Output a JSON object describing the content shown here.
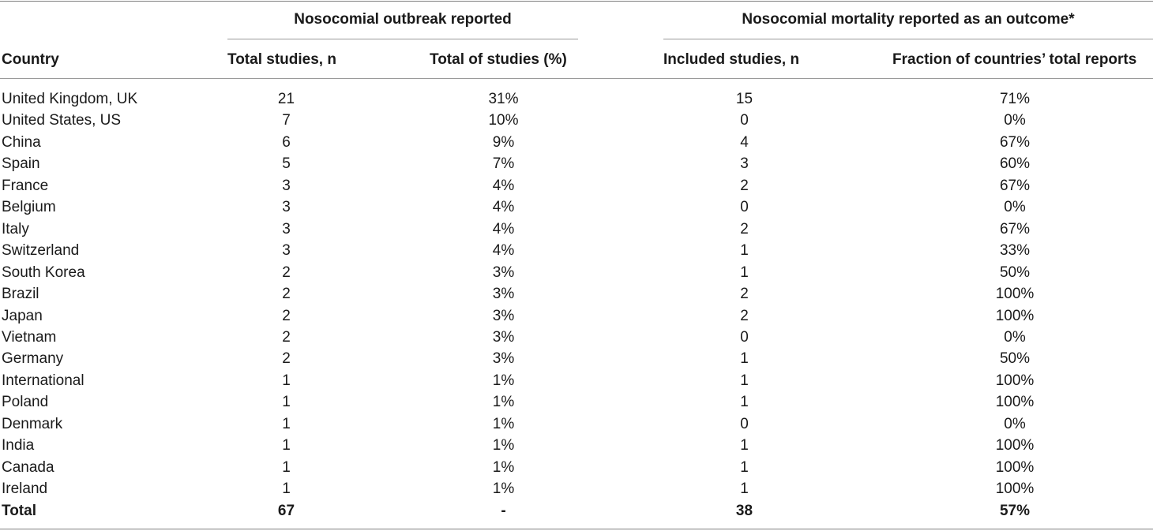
{
  "table": {
    "group_headers": {
      "outbreak": "Nosocomial outbreak reported",
      "mortality": "Nosocomial mortality reported as an outcome*"
    },
    "columns": {
      "country": "Country",
      "total_studies": "Total studies, n",
      "total_pct": "Total of studies (%)",
      "included_studies": "Included studies, n",
      "fraction": "Fraction of countries’ total reports"
    },
    "rows": [
      {
        "country": "United Kingdom, UK",
        "total": "21",
        "pct": "31%",
        "included": "15",
        "fraction": "71%"
      },
      {
        "country": "United States, US",
        "total": "7",
        "pct": "10%",
        "included": "0",
        "fraction": "0%"
      },
      {
        "country": "China",
        "total": "6",
        "pct": "9%",
        "included": "4",
        "fraction": "67%"
      },
      {
        "country": "Spain",
        "total": "5",
        "pct": "7%",
        "included": "3",
        "fraction": "60%"
      },
      {
        "country": "France",
        "total": "3",
        "pct": "4%",
        "included": "2",
        "fraction": "67%"
      },
      {
        "country": "Belgium",
        "total": "3",
        "pct": "4%",
        "included": "0",
        "fraction": "0%"
      },
      {
        "country": "Italy",
        "total": "3",
        "pct": "4%",
        "included": "2",
        "fraction": "67%"
      },
      {
        "country": "Switzerland",
        "total": "3",
        "pct": "4%",
        "included": "1",
        "fraction": "33%"
      },
      {
        "country": "South Korea",
        "total": "2",
        "pct": "3%",
        "included": "1",
        "fraction": "50%"
      },
      {
        "country": "Brazil",
        "total": "2",
        "pct": "3%",
        "included": "2",
        "fraction": "100%"
      },
      {
        "country": "Japan",
        "total": "2",
        "pct": "3%",
        "included": "2",
        "fraction": "100%"
      },
      {
        "country": "Vietnam",
        "total": "2",
        "pct": "3%",
        "included": "0",
        "fraction": "0%"
      },
      {
        "country": "Germany",
        "total": "2",
        "pct": "3%",
        "included": "1",
        "fraction": "50%"
      },
      {
        "country": "International",
        "total": "1",
        "pct": "1%",
        "included": "1",
        "fraction": "100%"
      },
      {
        "country": "Poland",
        "total": "1",
        "pct": "1%",
        "included": "1",
        "fraction": "100%"
      },
      {
        "country": "Denmark",
        "total": "1",
        "pct": "1%",
        "included": "0",
        "fraction": "0%"
      },
      {
        "country": "India",
        "total": "1",
        "pct": "1%",
        "included": "1",
        "fraction": "100%"
      },
      {
        "country": "Canada",
        "total": "1",
        "pct": "1%",
        "included": "1",
        "fraction": "100%"
      },
      {
        "country": "Ireland",
        "total": "1",
        "pct": "1%",
        "included": "1",
        "fraction": "100%"
      }
    ],
    "total_row": {
      "country": "Total",
      "total": "67",
      "pct": "-",
      "included": "38",
      "fraction": "57%"
    }
  }
}
